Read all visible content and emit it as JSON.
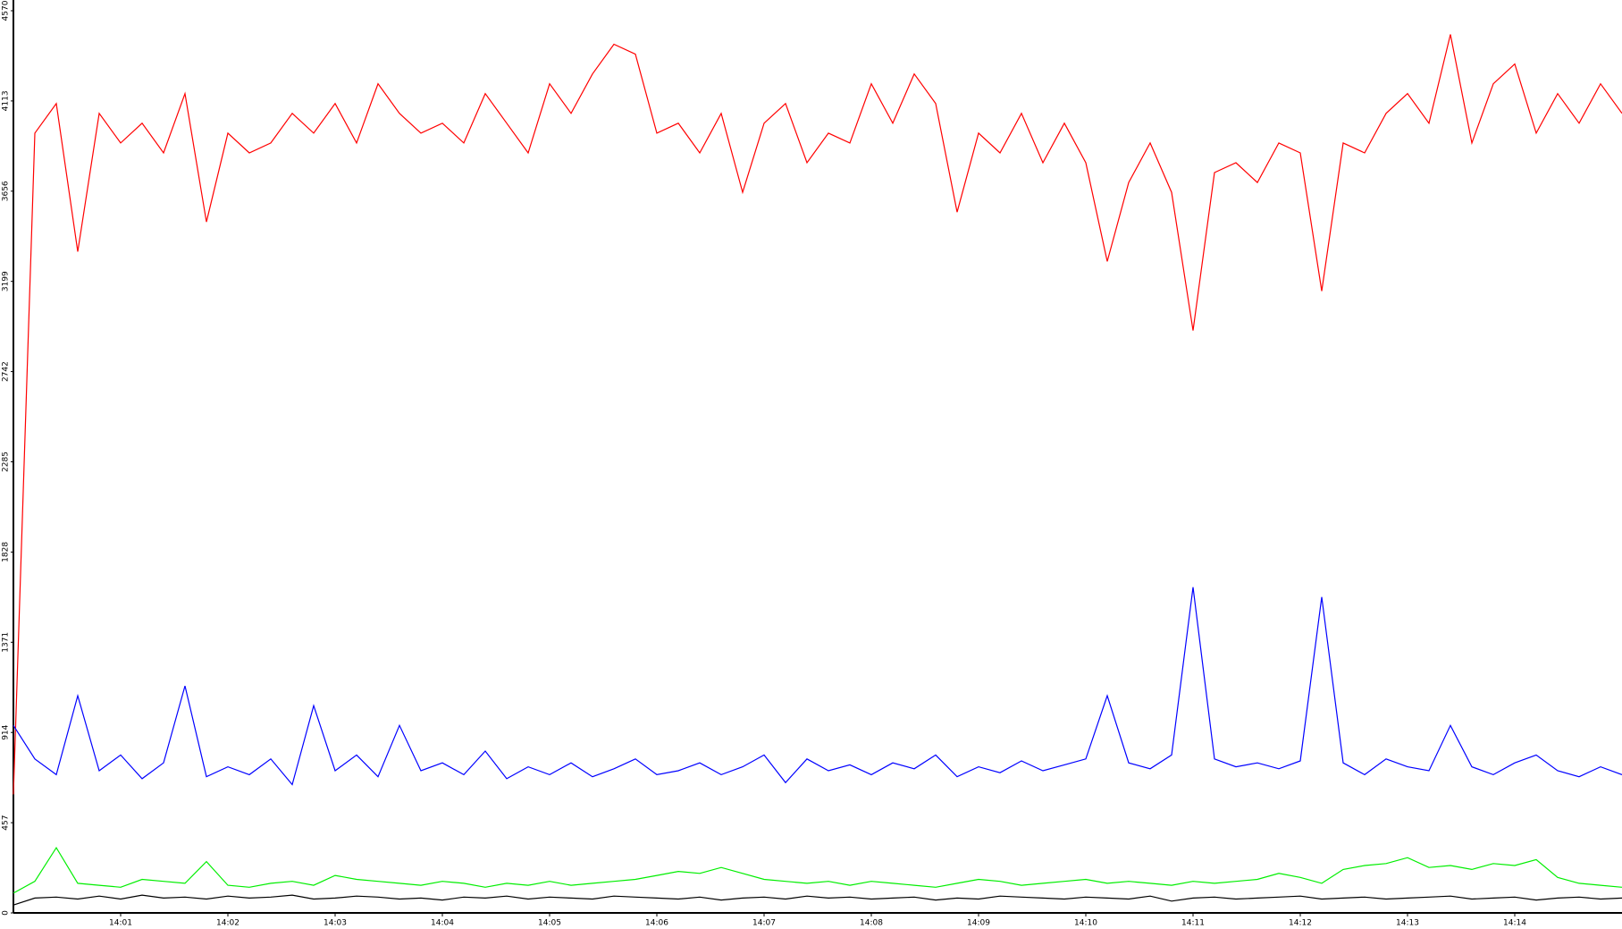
{
  "chart_data": {
    "type": "line",
    "x": [
      0,
      0.2,
      0.4,
      0.6,
      0.8,
      1,
      1.2,
      1.4,
      1.6,
      1.8,
      2,
      2.2,
      2.4,
      2.6,
      2.8,
      3,
      3.2,
      3.4,
      3.6,
      3.8,
      4,
      4.2,
      4.4,
      4.6,
      4.8,
      5,
      5.2,
      5.4,
      5.6,
      5.8,
      6,
      6.2,
      6.4,
      6.6,
      6.8,
      7,
      7.2,
      7.4,
      7.6,
      7.8,
      8,
      8.2,
      8.4,
      8.6,
      8.8,
      9,
      9.2,
      9.4,
      9.6,
      9.8,
      10,
      10.2,
      10.4,
      10.6,
      10.8,
      11,
      11.2,
      11.4,
      11.6,
      11.8,
      12,
      12.2,
      12.4,
      12.6,
      12.8,
      13,
      13.2,
      13.4,
      13.6,
      13.8,
      14,
      14.2,
      14.4,
      14.6,
      14.8,
      15
    ],
    "series": [
      {
        "color": "#ff0000",
        "values": [
          600,
          3950,
          4100,
          3350,
          4050,
          3900,
          4000,
          3850,
          4150,
          3500,
          3950,
          3850,
          3900,
          4050,
          3950,
          4100,
          3900,
          4200,
          4050,
          3950,
          4000,
          3900,
          4150,
          4000,
          3850,
          4200,
          4050,
          4250,
          4400,
          4350,
          3950,
          4000,
          3850,
          4050,
          3650,
          4000,
          4100,
          3800,
          3950,
          3900,
          4200,
          4000,
          4250,
          4100,
          3550,
          3950,
          3850,
          4050,
          3800,
          4000,
          3800,
          3300,
          3700,
          3900,
          3650,
          2950,
          3750,
          3800,
          3700,
          3900,
          3850,
          3150,
          3900,
          3850,
          4050,
          4150,
          4000,
          4450,
          3900,
          4200,
          4300,
          3950,
          4150,
          4000,
          4200,
          4050
        ]
      },
      {
        "color": "#0000ff",
        "values": [
          950,
          780,
          700,
          1100,
          720,
          800,
          680,
          760,
          1150,
          690,
          740,
          700,
          780,
          650,
          1050,
          720,
          800,
          690,
          950,
          720,
          760,
          700,
          820,
          680,
          740,
          700,
          760,
          690,
          730,
          780,
          700,
          720,
          760,
          700,
          740,
          800,
          660,
          780,
          720,
          750,
          700,
          760,
          730,
          800,
          690,
          740,
          710,
          770,
          720,
          750,
          780,
          1100,
          760,
          730,
          800,
          1650,
          780,
          740,
          760,
          730,
          770,
          1600,
          760,
          700,
          780,
          740,
          720,
          950,
          740,
          700,
          760,
          800,
          720,
          690,
          740,
          700
        ]
      },
      {
        "color": "#00ee00",
        "values": [
          100,
          160,
          330,
          150,
          140,
          130,
          170,
          160,
          150,
          260,
          140,
          130,
          150,
          160,
          140,
          190,
          170,
          160,
          150,
          140,
          160,
          150,
          130,
          150,
          140,
          160,
          140,
          150,
          160,
          170,
          190,
          210,
          200,
          230,
          200,
          170,
          160,
          150,
          160,
          140,
          160,
          150,
          140,
          130,
          150,
          170,
          160,
          140,
          150,
          160,
          170,
          150,
          160,
          150,
          140,
          160,
          150,
          160,
          170,
          200,
          180,
          150,
          220,
          240,
          250,
          280,
          230,
          240,
          220,
          250,
          240,
          270,
          180,
          150,
          140,
          130
        ]
      },
      {
        "color": "#000000",
        "values": [
          40,
          75,
          80,
          70,
          85,
          70,
          90,
          75,
          80,
          70,
          85,
          75,
          80,
          90,
          70,
          75,
          85,
          80,
          70,
          75,
          65,
          80,
          75,
          85,
          70,
          80,
          75,
          70,
          85,
          80,
          75,
          70,
          80,
          65,
          75,
          80,
          70,
          85,
          75,
          80,
          70,
          75,
          80,
          65,
          75,
          70,
          85,
          80,
          75,
          70,
          80,
          75,
          70,
          85,
          60,
          75,
          80,
          70,
          75,
          80,
          85,
          70,
          75,
          80,
          70,
          75,
          80,
          85,
          70,
          75,
          80,
          65,
          75,
          80,
          70,
          75
        ]
      }
    ],
    "xlim": [
      0,
      15
    ],
    "xticks": [
      {
        "value": 1,
        "label": "14:01"
      },
      {
        "value": 2,
        "label": "14:02"
      },
      {
        "value": 3,
        "label": "14:03"
      },
      {
        "value": 4,
        "label": "14:04"
      },
      {
        "value": 5,
        "label": "14:05"
      },
      {
        "value": 6,
        "label": "14:06"
      },
      {
        "value": 7,
        "label": "14:07"
      },
      {
        "value": 8,
        "label": "14:08"
      },
      {
        "value": 9,
        "label": "14:09"
      },
      {
        "value": 10,
        "label": "14:10"
      },
      {
        "value": 11,
        "label": "14:11"
      },
      {
        "value": 12,
        "label": "14:12"
      },
      {
        "value": 13,
        "label": "14:13"
      },
      {
        "value": 14,
        "label": "14:14"
      }
    ],
    "ylim": [
      0,
      4570
    ],
    "yticks": [
      0,
      457,
      914,
      1371,
      1828,
      2285,
      2742,
      3199,
      3656,
      4113,
      4570
    ]
  }
}
